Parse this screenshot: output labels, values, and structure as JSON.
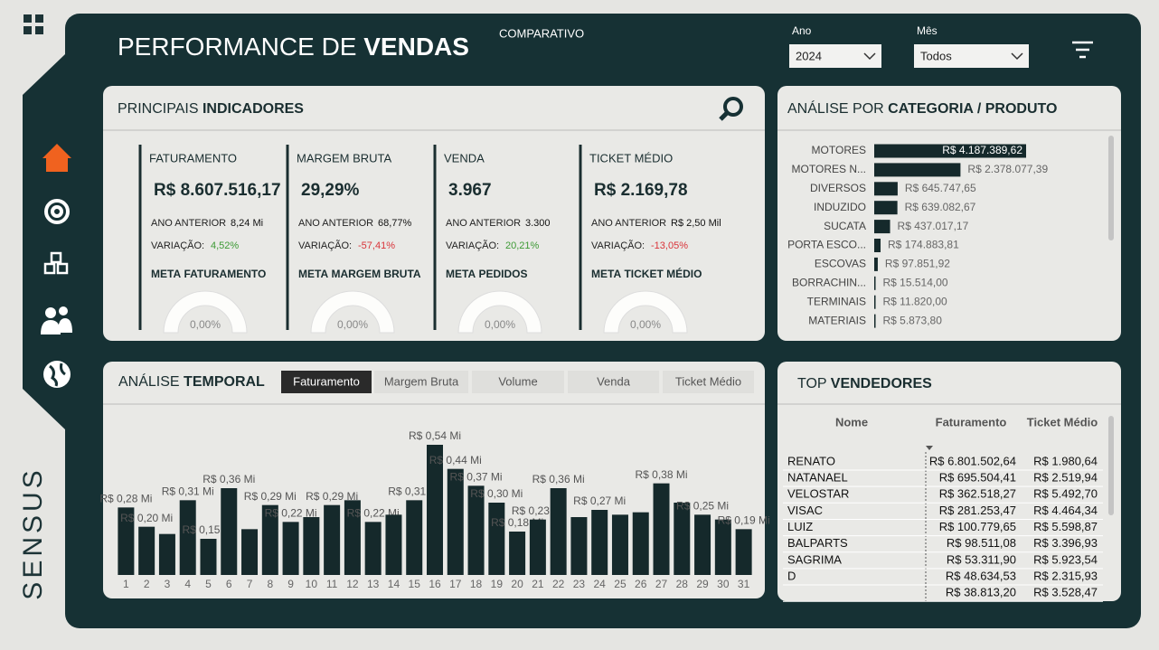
{
  "header": {
    "title_light": "PERFORMANCE DE",
    "title_bold": "VENDAS",
    "comparativo": "COMPARATIVO",
    "filters": [
      {
        "label": "Ano",
        "value": "2024"
      },
      {
        "label": "Mês",
        "value": "Todos"
      }
    ]
  },
  "brand": "SENSUS",
  "panels": {
    "indicadores": {
      "light": "PRINCIPAIS",
      "bold": "INDICADORES"
    },
    "categoria": {
      "light": "ANÁLISE POR",
      "bold": "CATEGORIA / PRODUTO"
    },
    "temporal": {
      "light": "ANÁLISE",
      "bold": "TEMPORAL"
    },
    "vendedores": {
      "light": "TOP",
      "bold": "VENDEDORES"
    }
  },
  "kpis": [
    {
      "title": "FATURAMENTO",
      "value": "R$ 8.607.516,17",
      "prev_label": "ANO ANTERIOR",
      "prev": "8,24 Mi",
      "var_label": "VARIAÇÃO:",
      "var": "4,52%",
      "var_color": "#3d9a35",
      "meta_bold": "META",
      "meta": "FATURAMENTO",
      "gauge": "0,00%"
    },
    {
      "title": "MARGEM BRUTA",
      "value": "29,29%",
      "prev_label": "ANO ANTERIOR",
      "prev": "68,77%",
      "var_label": "VARIAÇÃO:",
      "var": "-57,41%",
      "var_color": "#d9343a",
      "meta_bold": "META",
      "meta": "MARGEM BRUTA",
      "gauge": "0,00%"
    },
    {
      "title": "VENDA",
      "value": "3.967",
      "prev_label": "ANO ANTERIOR",
      "prev": "3.300",
      "var_label": "VARIAÇÃO:",
      "var": "20,21%",
      "var_color": "#3d9a35",
      "meta_bold": "META",
      "meta": "PEDIDOS",
      "gauge": "0,00%"
    },
    {
      "title": "TICKET MÉDIO",
      "value": "R$ 2.169,78",
      "prev_label": "ANO ANTERIOR",
      "prev": "R$ 2,50 Mil",
      "var_label": "VARIAÇÃO:",
      "var": "-13,05%",
      "var_color": "#d9343a",
      "meta_bold": "META",
      "meta": "TICKET MÉDIO",
      "gauge": "0,00%"
    }
  ],
  "temporal_tabs": [
    "Faturamento",
    "Margem Bruta",
    "Volume",
    "Venda",
    "Ticket Médio"
  ],
  "chart_data": [
    {
      "type": "bar",
      "color": "#15292b",
      "categories": [
        "1",
        "2",
        "3",
        "4",
        "5",
        "6",
        "7",
        "8",
        "9",
        "10",
        "11",
        "12",
        "13",
        "14",
        "15",
        "16",
        "17",
        "18",
        "19",
        "20",
        "21",
        "22",
        "23",
        "24",
        "25",
        "26",
        "27",
        "28",
        "29",
        "30",
        "31"
      ],
      "values": [
        0.28,
        0.2,
        0.17,
        0.31,
        0.15,
        0.36,
        0.19,
        0.29,
        0.22,
        0.24,
        0.29,
        0.31,
        0.22,
        0.25,
        0.31,
        0.54,
        0.44,
        0.37,
        0.3,
        0.18,
        0.23,
        0.36,
        0.24,
        0.27,
        0.25,
        0.26,
        0.38,
        0.3,
        0.25,
        0.23,
        0.19
      ],
      "value_labels": [
        "R$ 0,28 Mi",
        "R$ 0,20 Mi",
        null,
        "R$ 0,31 Mi",
        "R$ 0,15 Mi",
        "R$ 0,36 Mi",
        null,
        "R$ 0,29 Mi",
        "R$ 0,22 Mi",
        null,
        "R$ 0,29 Mi",
        null,
        "R$ 0,22 Mi",
        null,
        "R$ 0,31 Mi",
        "R$ 0,54 Mi",
        "R$ 0,44 Mi",
        "R$ 0,37 Mi",
        "R$ 0,30 Mi",
        "R$ 0,18 Mi",
        "R$ 0,23 Mi",
        "R$ 0,36 Mi",
        null,
        "R$ 0,27 Mi",
        null,
        null,
        "R$ 0,38 Mi",
        null,
        "R$ 0,25 Mi",
        null,
        "R$ 0,19 Mi"
      ]
    },
    {
      "type": "barh",
      "color": "#15292b",
      "categories": [
        "MOTORES",
        "MOTORES N...",
        "DIVERSOS",
        "INDUZIDO",
        "SUCATA",
        "PORTA ESCO...",
        "ESCOVAS",
        "BORRACHIN...",
        "TERMINAIS",
        "MATERIAIS"
      ],
      "values": [
        4187389.62,
        2378077.39,
        645747.65,
        639082.67,
        437017.17,
        174883.81,
        97851.92,
        15514.0,
        11820.0,
        5873.8
      ],
      "value_labels": [
        "R$ 4.187.389,62",
        "R$ 2.378.077,39",
        "R$ 645.747,65",
        "R$ 639.082,67",
        "R$ 437.017,17",
        "R$ 174.883,81",
        "R$ 97.851,92",
        "R$ 15.514,00",
        "R$ 11.820,00",
        "R$ 5.873,80"
      ]
    }
  ],
  "vendedores": {
    "columns": [
      "Nome",
      "Faturamento",
      "Ticket Médio"
    ],
    "rows": [
      [
        "RENATO",
        "R$ 6.801.502,64",
        "R$ 1.980,64"
      ],
      [
        "NATANAEL",
        "R$ 695.504,41",
        "R$ 2.519,94"
      ],
      [
        "VELOSTAR",
        "R$ 362.518,27",
        "R$ 5.492,70"
      ],
      [
        "VISAC",
        "R$ 281.253,47",
        "R$ 4.464,34"
      ],
      [
        "LUIZ",
        "R$ 100.779,65",
        "R$ 5.598,87"
      ],
      [
        "BALPARTS",
        "R$ 98.511,08",
        "R$ 3.396,93"
      ],
      [
        "SAGRIMA",
        "R$ 53.311,90",
        "R$ 5.923,54"
      ],
      [
        "D",
        "R$ 48.634,53",
        "R$ 2.315,93"
      ],
      [
        null,
        "R$ 38.813,20",
        "R$ 3.528,47"
      ]
    ]
  }
}
